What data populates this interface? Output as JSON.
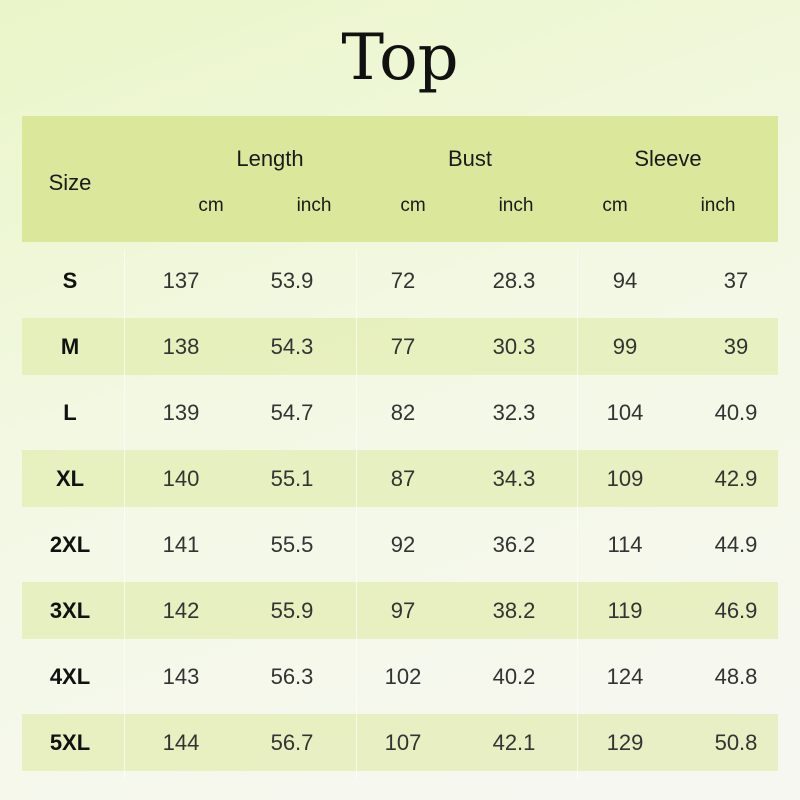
{
  "title": "Top",
  "header": {
    "size_label": "Size",
    "groups": [
      {
        "label": "Length",
        "units": [
          "cm",
          "inch"
        ]
      },
      {
        "label": "Bust",
        "units": [
          "cm",
          "inch"
        ]
      },
      {
        "label": "Sleeve",
        "units": [
          "cm",
          "inch"
        ]
      }
    ]
  },
  "rows": [
    [
      "S",
      "137",
      "53.9",
      "72",
      "28.3",
      "94",
      "37"
    ],
    [
      "M",
      "138",
      "54.3",
      "77",
      "30.3",
      "99",
      "39"
    ],
    [
      "L",
      "139",
      "54.7",
      "82",
      "32.3",
      "104",
      "40.9"
    ],
    [
      "XL",
      "140",
      "55.1",
      "87",
      "34.3",
      "109",
      "42.9"
    ],
    [
      "2XL",
      "141",
      "55.5",
      "92",
      "36.2",
      "114",
      "44.9"
    ],
    [
      "3XL",
      "142",
      "55.9",
      "97",
      "38.2",
      "119",
      "46.9"
    ],
    [
      "4XL",
      "143",
      "56.3",
      "102",
      "40.2",
      "124",
      "48.8"
    ],
    [
      "5XL",
      "144",
      "56.7",
      "107",
      "42.1",
      "129",
      "50.8"
    ]
  ],
  "colors": {
    "header_bg": "#dbe89b",
    "band_bg": "#e4eec0"
  }
}
